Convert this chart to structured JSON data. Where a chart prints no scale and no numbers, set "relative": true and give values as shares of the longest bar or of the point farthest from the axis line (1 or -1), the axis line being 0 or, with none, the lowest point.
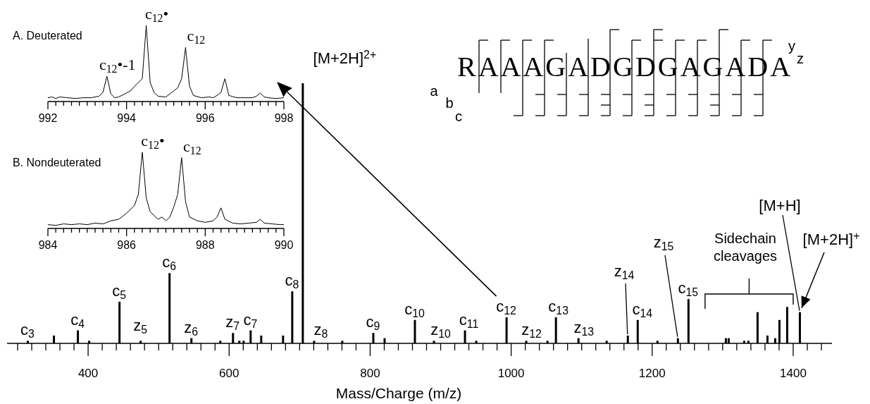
{
  "chart_data": [
    {
      "type": "bar",
      "relative": true,
      "color": "#000000",
      "xlabel": "Mass/Charge (m/z)",
      "xlim": [
        285,
        1455
      ],
      "xticks": [
        {
          "value": 300,
          "label": null
        },
        {
          "value": 320,
          "label": null
        },
        {
          "value": 340,
          "label": null
        },
        {
          "value": 360,
          "label": null
        },
        {
          "value": 380,
          "label": null
        },
        400,
        {
          "value": 420,
          "label": null
        },
        {
          "value": 440,
          "label": null
        },
        {
          "value": 460,
          "label": null
        },
        {
          "value": 480,
          "label": null
        },
        {
          "value": 500,
          "label": null
        },
        {
          "value": 520,
          "label": null
        },
        {
          "value": 540,
          "label": null
        },
        {
          "value": 560,
          "label": null
        },
        {
          "value": 580,
          "label": null
        },
        600,
        {
          "value": 620,
          "label": null
        },
        {
          "value": 640,
          "label": null
        },
        {
          "value": 660,
          "label": null
        },
        {
          "value": 680,
          "label": null
        },
        {
          "value": 700,
          "label": null
        },
        {
          "value": 720,
          "label": null
        },
        {
          "value": 740,
          "label": null
        },
        {
          "value": 760,
          "label": null
        },
        {
          "value": 780,
          "label": null
        },
        800,
        {
          "value": 820,
          "label": null
        },
        {
          "value": 840,
          "label": null
        },
        {
          "value": 860,
          "label": null
        },
        {
          "value": 880,
          "label": null
        },
        {
          "value": 900,
          "label": null
        },
        {
          "value": 920,
          "label": null
        },
        {
          "value": 940,
          "label": null
        },
        {
          "value": 960,
          "label": null
        },
        {
          "value": 980,
          "label": null
        },
        1000,
        {
          "value": 1020,
          "label": null
        },
        {
          "value": 1040,
          "label": null
        },
        {
          "value": 1060,
          "label": null
        },
        {
          "value": 1080,
          "label": null
        },
        {
          "value": 1100,
          "label": null
        },
        {
          "value": 1120,
          "label": null
        },
        {
          "value": 1140,
          "label": null
        },
        {
          "value": 1160,
          "label": null
        },
        {
          "value": 1180,
          "label": null
        },
        1200,
        {
          "value": 1220,
          "label": null
        },
        {
          "value": 1240,
          "label": null
        },
        {
          "value": 1260,
          "label": null
        },
        {
          "value": 1280,
          "label": null
        },
        {
          "value": 1300,
          "label": null
        },
        {
          "value": 1320,
          "label": null
        },
        {
          "value": 1340,
          "label": null
        },
        {
          "value": 1360,
          "label": null
        },
        {
          "value": 1380,
          "label": null
        },
        1400,
        {
          "value": 1420,
          "label": null
        },
        {
          "value": 1440,
          "label": null
        }
      ],
      "x": [
        314,
        351,
        385,
        401,
        444,
        474,
        515,
        546,
        587,
        605,
        614,
        620,
        630,
        645,
        676,
        689,
        704,
        720,
        760,
        804,
        820,
        863,
        890,
        934,
        950,
        993,
        1021,
        1051,
        1063,
        1095,
        1135,
        1165,
        1179,
        1207,
        1236,
        1251,
        1304,
        1308,
        1330,
        1336,
        1349,
        1363,
        1374,
        1380,
        1391,
        1409
      ],
      "values": [
        0.01,
        0.03,
        0.05,
        0.01,
        0.16,
        0.01,
        0.27,
        0.02,
        0.01,
        0.04,
        0.01,
        0.01,
        0.05,
        0.03,
        0.03,
        0.2,
        1,
        0.01,
        0.01,
        0.04,
        0.02,
        0.09,
        0.01,
        0.05,
        0.01,
        0.1,
        0.01,
        0.01,
        0.1,
        0.02,
        0.01,
        0.03,
        0.09,
        0.01,
        0.02,
        0.17,
        0.02,
        0.02,
        0.01,
        0.01,
        0.12,
        0.03,
        0.02,
        0.09,
        0.14,
        0.12
      ],
      "annotations": [
        {
          "text": "c$_{3}$",
          "x": 314,
          "y": 0.01
        },
        {
          "text": "c$_{4}$",
          "x": 385,
          "y": 0.05
        },
        {
          "text": "c$_{5}$",
          "x": 444,
          "y": 0.16
        },
        {
          "text": "z$_{5}$",
          "x": 474,
          "y": 0.01
        },
        {
          "text": "c$_{6}$",
          "x": 515,
          "y": 0.27
        },
        {
          "text": "z$_{6}$",
          "x": 546,
          "y": 0.02
        },
        {
          "text": "z$_{7}$",
          "x": 605,
          "y": 0.04
        },
        {
          "text": "c$_{7}$",
          "x": 630,
          "y": 0.05
        },
        {
          "text": "c$_{8}$",
          "x": 689,
          "y": 0.2
        },
        {
          "text": "z$_{8}$",
          "x": 720,
          "y": 0.01
        },
        {
          "text": "c$_{9}$",
          "x": 804,
          "y": 0.04
        },
        {
          "text": "c$_{10}$",
          "x": 863,
          "y": 0.09
        },
        {
          "text": "z$_{10}$",
          "x": 890,
          "y": 0.01
        },
        {
          "text": "c$_{11}$",
          "x": 934,
          "y": 0.05
        },
        {
          "text": "c$_{12}$",
          "x": 993,
          "y": 0.1
        },
        {
          "text": "z$_{12}$",
          "x": 1021,
          "y": 0.01
        },
        {
          "text": "c$_{13}$",
          "x": 1063,
          "y": 0.1
        },
        {
          "text": "z$_{13}$",
          "x": 1095,
          "y": 0.02
        },
        {
          "text": "z$_{14}$",
          "x": 1165,
          "y": 0.03
        },
        {
          "text": "c$_{14}$",
          "x": 1179,
          "y": 0.09
        },
        {
          "text": "z$_{15}$",
          "x": 1236,
          "y": 0.02
        },
        {
          "text": "c$_{15}$",
          "x": 1251,
          "y": 0.17
        },
        {
          "text": "[M+H]",
          "x": 1409,
          "y": 0.12
        },
        {
          "text": "[M+2H]$^{+}$",
          "x": 1409,
          "y": 0.12
        },
        {
          "text": "[M+2H]$^{2+}$",
          "x": 704,
          "y": 1
        },
        "Sidechain cleavages",
        "RAAAGADGDGAGADA",
        "a",
        "b",
        "c",
        "y",
        "z"
      ]
    },
    {
      "type": "line",
      "relative": true,
      "title": "A. Deuterated",
      "color": "#000000",
      "xlim": [
        992,
        998
      ],
      "xticks": [
        992,
        {
          "value": 992.2,
          "label": null
        },
        {
          "value": 992.4,
          "label": null
        },
        {
          "value": 992.6,
          "label": null
        },
        {
          "value": 992.8,
          "label": null
        },
        {
          "value": 993,
          "label": null
        },
        {
          "value": 993.2,
          "label": null
        },
        {
          "value": 993.4,
          "label": null
        },
        {
          "value": 993.6,
          "label": null
        },
        {
          "value": 993.8,
          "label": null
        },
        994,
        {
          "value": 994.2,
          "label": null
        },
        {
          "value": 994.4,
          "label": null
        },
        {
          "value": 994.6,
          "label": null
        },
        {
          "value": 994.8,
          "label": null
        },
        {
          "value": 995,
          "label": null
        },
        {
          "value": 995.2,
          "label": null
        },
        {
          "value": 995.4,
          "label": null
        },
        {
          "value": 995.6,
          "label": null
        },
        {
          "value": 995.8,
          "label": null
        },
        996,
        {
          "value": 996.2,
          "label": null
        },
        {
          "value": 996.4,
          "label": null
        },
        {
          "value": 996.6,
          "label": null
        },
        {
          "value": 996.8,
          "label": null
        },
        {
          "value": 997,
          "label": null
        },
        {
          "value": 997.2,
          "label": null
        },
        {
          "value": 997.4,
          "label": null
        },
        {
          "value": 997.6,
          "label": null
        },
        {
          "value": 997.8,
          "label": null
        },
        998
      ],
      "x": [
        992,
        992.1,
        992.2,
        992.3,
        992.5,
        992.7,
        992.9,
        993.1,
        993.3,
        993.4,
        993.5,
        993.6,
        993.7,
        993.8,
        993.95,
        994.1,
        994.2,
        994.3,
        994.4,
        994.5,
        994.6,
        994.7,
        994.8,
        995,
        995.1,
        995.2,
        995.3,
        995.4,
        995.5,
        995.6,
        995.7,
        995.9,
        996.1,
        996.2,
        996.3,
        996.4,
        996.5,
        996.6,
        996.8,
        997,
        997.2,
        997.3,
        997.4,
        997.5,
        997.6,
        997.8,
        998
      ],
      "values": [
        0.05,
        0.06,
        0.04,
        0.06,
        0.05,
        0.04,
        0.05,
        0.05,
        0.07,
        0.12,
        0.33,
        0.1,
        0.05,
        0.06,
        0.1,
        0.14,
        0.2,
        0.25,
        0.3,
        1,
        0.25,
        0.12,
        0.07,
        0.06,
        0.1,
        0.14,
        0.18,
        0.3,
        0.71,
        0.2,
        0.08,
        0.05,
        0.06,
        0.05,
        0.08,
        0.12,
        0.3,
        0.08,
        0.05,
        0.05,
        0.05,
        0.07,
        0.11,
        0.06,
        0.05,
        0.04,
        0.05
      ],
      "annotations": [
        {
          "text": "c$_{12}$•-1",
          "x": 993.5,
          "y": 0.33
        },
        {
          "text": "c$_{12}$•",
          "x": 994.5,
          "y": 1
        },
        {
          "text": "c$_{12}$",
          "x": 995.5,
          "y": 0.71
        }
      ]
    },
    {
      "type": "line",
      "relative": true,
      "title": "B. Nondeuterated",
      "color": "#000000",
      "xlim": [
        984,
        990
      ],
      "xticks": [
        984,
        {
          "value": 984.2,
          "label": null
        },
        {
          "value": 984.4,
          "label": null
        },
        {
          "value": 984.6,
          "label": null
        },
        {
          "value": 984.8,
          "label": null
        },
        {
          "value": 985,
          "label": null
        },
        {
          "value": 985.2,
          "label": null
        },
        {
          "value": 985.4,
          "label": null
        },
        {
          "value": 985.6,
          "label": null
        },
        {
          "value": 985.8,
          "label": null
        },
        986,
        {
          "value": 986.2,
          "label": null
        },
        {
          "value": 986.4,
          "label": null
        },
        {
          "value": 986.6,
          "label": null
        },
        {
          "value": 986.8,
          "label": null
        },
        {
          "value": 987,
          "label": null
        },
        {
          "value": 987.2,
          "label": null
        },
        {
          "value": 987.4,
          "label": null
        },
        {
          "value": 987.6,
          "label": null
        },
        {
          "value": 987.8,
          "label": null
        },
        988,
        {
          "value": 988.2,
          "label": null
        },
        {
          "value": 988.4,
          "label": null
        },
        {
          "value": 988.6,
          "label": null
        },
        {
          "value": 988.8,
          "label": null
        },
        {
          "value": 989,
          "label": null
        },
        {
          "value": 989.2,
          "label": null
        },
        {
          "value": 989.4,
          "label": null
        },
        {
          "value": 989.6,
          "label": null
        },
        {
          "value": 989.8,
          "label": null
        },
        990
      ],
      "x": [
        984,
        984.2,
        984.4,
        984.6,
        984.8,
        985,
        985.2,
        985.4,
        985.6,
        985.8,
        986,
        986.2,
        986.3,
        986.4,
        986.5,
        986.6,
        986.8,
        986.9,
        987,
        987.1,
        987.2,
        987.3,
        987.4,
        987.5,
        987.6,
        987.8,
        988,
        988.2,
        988.3,
        988.4,
        988.5,
        988.7,
        988.9,
        989.1,
        989.3,
        989.4,
        989.5,
        989.7,
        989.9,
        990
      ],
      "values": [
        0.05,
        0.04,
        0.06,
        0.05,
        0.06,
        0.05,
        0.07,
        0.06,
        0.1,
        0.12,
        0.2,
        0.3,
        0.45,
        1,
        0.4,
        0.22,
        0.12,
        0.15,
        0.1,
        0.15,
        0.28,
        0.45,
        0.93,
        0.35,
        0.15,
        0.1,
        0.08,
        0.1,
        0.15,
        0.27,
        0.12,
        0.07,
        0.06,
        0.07,
        0.08,
        0.12,
        0.07,
        0.06,
        0.05,
        0.05
      ],
      "annotations": [
        {
          "text": "c$_{12}$•",
          "x": 986.4,
          "y": 1
        },
        {
          "text": "c$_{12}$",
          "x": 987.4,
          "y": 0.93
        }
      ]
    }
  ]
}
